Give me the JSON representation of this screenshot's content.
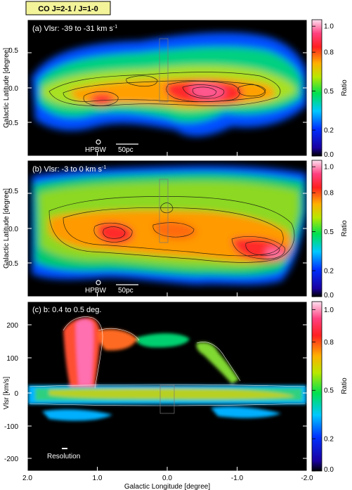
{
  "title_box": "CO J=2-1 / J=1-0",
  "colors": {
    "title_box_bg": "#f3f39a",
    "panel_bg": "#000000"
  },
  "chart_data": [
    {
      "type": "heatmap",
      "panel": "(a) Vlsr: -39 to -31 km s",
      "unit_sup": "-1",
      "xlabel": "",
      "ylabel": "Galactic Latitude [degree]",
      "xlim": [
        2.0,
        -2.0
      ],
      "ylim": [
        -0.95,
        0.95
      ],
      "yticks": [
        "0.5",
        "0.0",
        "-0.5"
      ],
      "colorbar": {
        "label": "Ratio",
        "range": [
          0.0,
          1.05
        ],
        "ticks": [
          "1.0",
          "0.8",
          "0.5",
          "0.2",
          "0.0"
        ]
      },
      "annotations": {
        "beam": "HPBW",
        "scale": "50pc"
      }
    },
    {
      "type": "heatmap",
      "panel": "(b) Vlsr: -3 to 0 km s",
      "unit_sup": "-1",
      "xlabel": "",
      "ylabel": "Galactic Latitude [degree]",
      "xlim": [
        2.0,
        -2.0
      ],
      "ylim": [
        -0.95,
        0.95
      ],
      "yticks": [
        "0.5",
        "0.0",
        "-0.5"
      ],
      "colorbar": {
        "label": "Ratio",
        "range": [
          0.0,
          1.05
        ],
        "ticks": [
          "1.0",
          "0.8",
          "0.5",
          "0.2",
          "0.0"
        ]
      },
      "annotations": {
        "beam": "HPBW",
        "scale": "50pc"
      }
    },
    {
      "type": "heatmap",
      "panel": "(c) b: 0.4 to 0.5 deg.",
      "xlabel": "Galactic Longitude [degree]",
      "ylabel": "Vlsr [km/s]",
      "xlim": [
        2.0,
        -2.0
      ],
      "ylim": [
        -225,
        240
      ],
      "xticks": [
        "2.0",
        "1.0",
        "0.0",
        "-1.0",
        "-2.0"
      ],
      "yticks": [
        "200",
        "100",
        "0",
        "-100",
        "-200"
      ],
      "colorbar": {
        "label": "Ratio",
        "range": [
          0.0,
          1.05
        ],
        "ticks": [
          "1.0",
          "0.8",
          "0.5",
          "0.2",
          "0.0"
        ]
      },
      "annotations": {
        "resolution": "Resolution"
      }
    }
  ]
}
